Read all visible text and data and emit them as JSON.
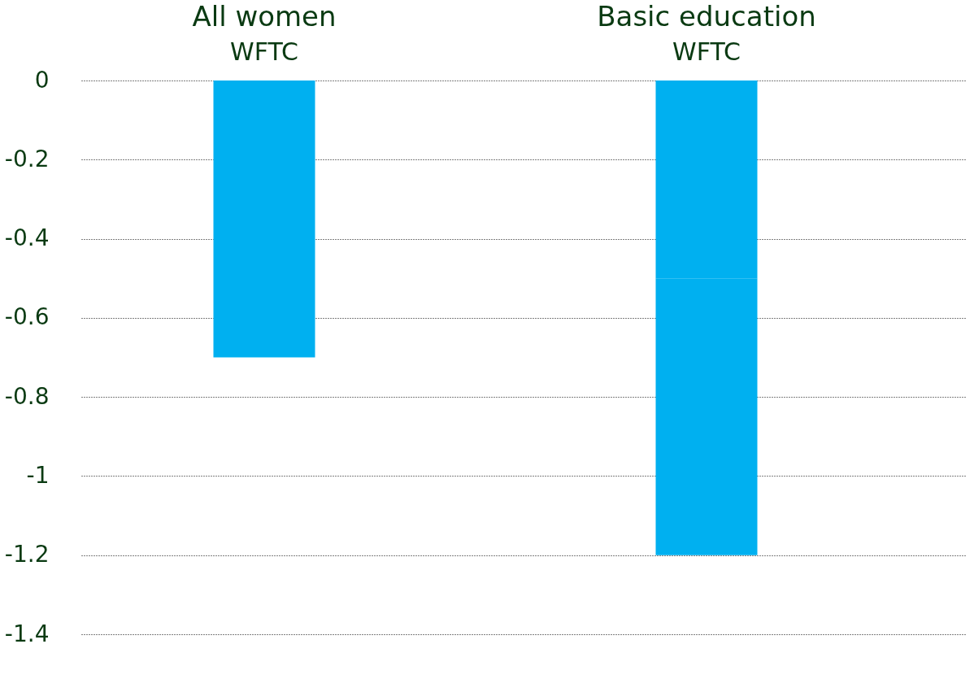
{
  "chart_data": [
    {
      "type": "bar",
      "title": "All women",
      "categories": [
        "WFTC"
      ],
      "stacked": true,
      "series": [
        {
          "color": "#00b0f0",
          "values": [
            -0.3
          ]
        },
        {
          "color": "#00b0f0",
          "values": [
            -0.4
          ]
        }
      ],
      "ylim": [
        -1.4,
        0
      ],
      "yticks": [
        0,
        -0.2,
        -0.4,
        -0.6,
        -0.8,
        -1,
        -1.2,
        -1.4
      ],
      "grid": "y",
      "legend": false
    },
    {
      "type": "bar",
      "title": "Basic education",
      "categories": [
        "WFTC"
      ],
      "stacked": true,
      "series": [
        {
          "color": "#00b0f0",
          "values": [
            -0.5
          ]
        },
        {
          "color": "#00b0f0",
          "values": [
            -0.7
          ]
        }
      ],
      "ylim": [
        -1.4,
        0
      ],
      "yticks": [
        0,
        -0.2,
        -0.4,
        -0.6,
        -0.8,
        -1,
        -1.2,
        -1.4
      ],
      "grid": "y",
      "legend": false,
      "tick_labels": "x"
    }
  ]
}
